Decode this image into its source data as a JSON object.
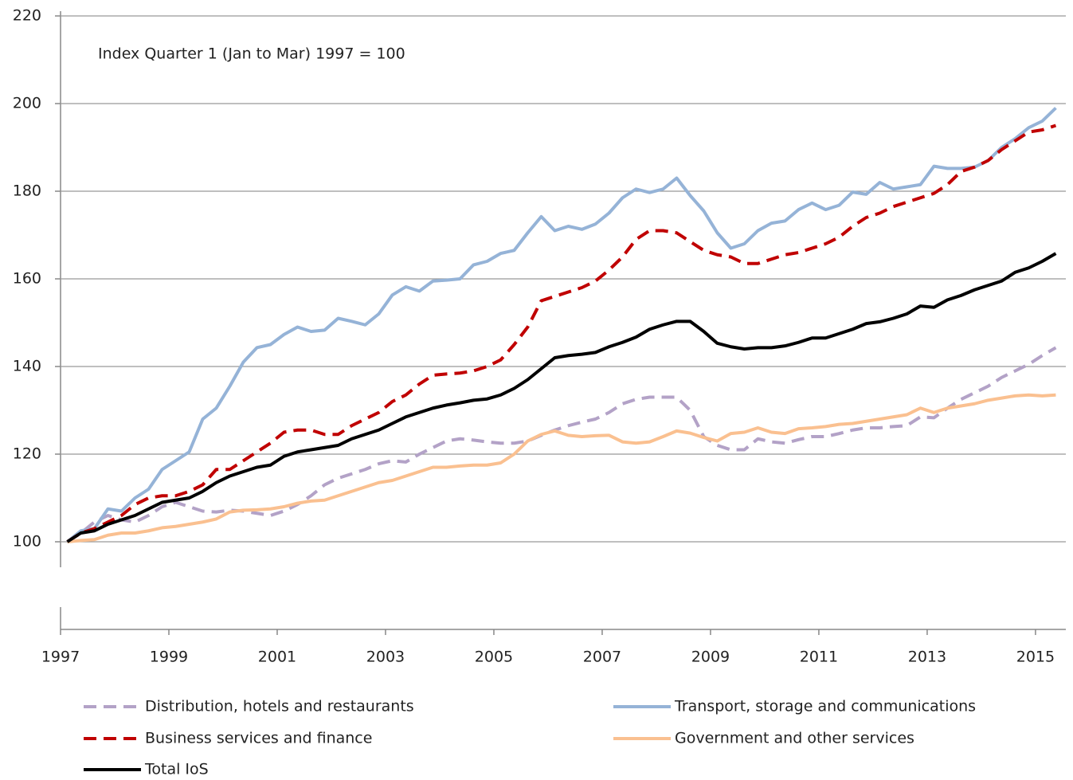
{
  "chart_data": {
    "type": "line",
    "annotation": "Index Quarter 1 (Jan to Mar)  1997 = 100",
    "x": [
      1997.125,
      1997.375,
      1997.625,
      1997.875,
      1998.125,
      1998.375,
      1998.625,
      1998.875,
      1999.125,
      1999.375,
      1999.625,
      1999.875,
      2000.125,
      2000.375,
      2000.625,
      2000.875,
      2001.125,
      2001.375,
      2001.625,
      2001.875,
      2002.125,
      2002.375,
      2002.625,
      2002.875,
      2003.125,
      2003.375,
      2003.625,
      2003.875,
      2004.125,
      2004.375,
      2004.625,
      2004.875,
      2005.125,
      2005.375,
      2005.625,
      2005.875,
      2006.125,
      2006.375,
      2006.625,
      2006.875,
      2007.125,
      2007.375,
      2007.625,
      2007.875,
      2008.125,
      2008.375,
      2008.625,
      2008.875,
      2009.125,
      2009.375,
      2009.625,
      2009.875,
      2010.125,
      2010.375,
      2010.625,
      2010.875,
      2011.125,
      2011.375,
      2011.625,
      2011.875,
      2012.125,
      2012.375,
      2012.625,
      2012.875,
      2013.125,
      2013.375,
      2013.625,
      2013.875,
      2014.125,
      2014.375,
      2014.625,
      2014.875,
      2015.125,
      2015.375
    ],
    "series": [
      {
        "name": "Distribution, hotels and restaurants",
        "color": "#b3a2c7",
        "dashed": true,
        "values": [
          100,
          102,
          104.5,
          106,
          105,
          104.5,
          106,
          108,
          109,
          108,
          107,
          106.8,
          107.2,
          107,
          106.5,
          106,
          107,
          108.5,
          110.5,
          113,
          114.5,
          115.5,
          116.5,
          117.8,
          118.5,
          118.2,
          120,
          121.5,
          123,
          123.5,
          123.2,
          122.8,
          122.5,
          122.5,
          123,
          124.3,
          125.5,
          126.5,
          127.3,
          128,
          129.5,
          131.5,
          132.5,
          133,
          133,
          133,
          130,
          124,
          122,
          121,
          121,
          123.5,
          122.8,
          122.5,
          123.3,
          124,
          124,
          124.7,
          125.5,
          126,
          126,
          126.3,
          126.5,
          128.5,
          128.3,
          130.5,
          132.5,
          134,
          135.5,
          137.5,
          139,
          140.5,
          142.5,
          144.3
        ]
      },
      {
        "name": "Transport, storage and communications",
        "color": "#95b3d7",
        "dashed": false,
        "values": [
          100,
          102.5,
          103,
          107.5,
          107,
          110,
          112,
          116.5,
          118.5,
          120.5,
          128,
          130.5,
          135.5,
          141,
          144.3,
          145,
          147.3,
          149,
          148,
          148.3,
          151,
          150.3,
          149.5,
          152,
          156.3,
          158.2,
          157.2,
          159.5,
          159.7,
          160,
          163.2,
          164,
          165.8,
          166.5,
          170.5,
          174.2,
          171,
          172,
          171.3,
          172.5,
          175,
          178.5,
          180.5,
          179.7,
          180.5,
          183,
          179,
          175.5,
          170.5,
          167,
          168,
          171,
          172.7,
          173.2,
          175.8,
          177.3,
          175.8,
          176.8,
          179.8,
          179.3,
          182,
          180.5,
          181,
          181.5,
          185.7,
          185.2,
          185.2,
          185.5,
          187,
          190,
          192,
          194.5,
          196,
          199
        ]
      },
      {
        "name": "Business services and finance",
        "color": "#c00000",
        "dashed": true,
        "values": [
          100,
          102,
          103,
          104.5,
          106,
          108.5,
          110,
          110.5,
          110.5,
          111.5,
          113,
          116.5,
          116.5,
          118.5,
          120.5,
          122.5,
          125,
          125.5,
          125.5,
          124.5,
          124.5,
          126.5,
          128,
          129.5,
          132,
          133.5,
          136,
          138,
          138.3,
          138.5,
          139,
          140,
          141.5,
          145,
          149,
          155,
          156,
          157,
          158,
          159.5,
          162,
          165,
          169,
          171,
          171,
          170.5,
          168.5,
          166.5,
          165.5,
          165,
          163.5,
          163.5,
          164.5,
          165.5,
          166,
          167,
          168,
          169.5,
          172,
          174,
          175,
          176.5,
          177.5,
          178.5,
          179.5,
          181.5,
          184.5,
          185.5,
          187,
          189.5,
          191.5,
          193.5,
          194,
          195
        ]
      },
      {
        "name": "Government and other services",
        "color": "#fac090",
        "dashed": false,
        "values": [
          100,
          100.3,
          100.5,
          101.5,
          102,
          102,
          102.5,
          103.2,
          103.5,
          104,
          104.5,
          105.2,
          106.8,
          107.2,
          107.3,
          107.5,
          108,
          108.8,
          109.3,
          109.5,
          110.5,
          111.5,
          112.5,
          113.5,
          114,
          115,
          116,
          117,
          117,
          117.3,
          117.5,
          117.5,
          118,
          120,
          123,
          124.5,
          125.3,
          124.3,
          124,
          124.2,
          124.3,
          122.8,
          122.5,
          122.8,
          124,
          125.3,
          124.8,
          123.8,
          123,
          124.7,
          125,
          126,
          125,
          124.7,
          125.8,
          126,
          126.3,
          126.8,
          127,
          127.5,
          128,
          128.5,
          129,
          130.5,
          129.5,
          130.5,
          131,
          131.5,
          132.3,
          132.8,
          133.3,
          133.5,
          133.3,
          133.5
        ]
      },
      {
        "name": "Total IoS",
        "color": "#000000",
        "dashed": false,
        "values": [
          100,
          102,
          102.5,
          104,
          105,
          106,
          107.5,
          109,
          109.5,
          110,
          111.5,
          113.5,
          115,
          116,
          117,
          117.5,
          119.5,
          120.5,
          121,
          121.5,
          122,
          123.5,
          124.5,
          125.5,
          127,
          128.5,
          129.5,
          130.5,
          131.2,
          131.7,
          132.3,
          132.6,
          133.5,
          135,
          137,
          139.5,
          142,
          142.5,
          142.8,
          143.2,
          144.5,
          145.5,
          146.7,
          148.5,
          149.5,
          150.3,
          150.3,
          148,
          145.3,
          144.5,
          144,
          144.3,
          144.3,
          144.7,
          145.5,
          146.5,
          146.5,
          147.5,
          148.5,
          149.8,
          150.2,
          151,
          152,
          153.8,
          153.5,
          155.2,
          156.2,
          157.5,
          158.5,
          159.5,
          161.5,
          162.5,
          164,
          165.8
        ]
      }
    ],
    "xlim": [
      1997,
      2015.56
    ],
    "xticks": [
      1997,
      1999,
      2001,
      2003,
      2005,
      2007,
      2009,
      2011,
      2013,
      2015
    ],
    "ylim": [
      80,
      220
    ],
    "yticks": [
      100,
      120,
      140,
      160,
      180,
      200,
      220
    ],
    "grid": true
  }
}
